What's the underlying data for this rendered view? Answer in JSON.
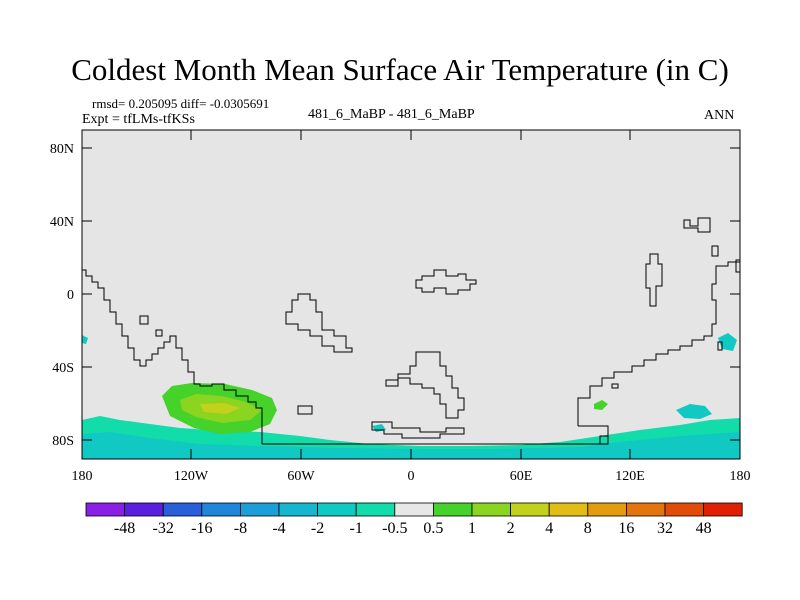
{
  "title": "Coldest Month Mean Surface Air Temperature (in C)",
  "stats_line": "rmsd= 0.205095 diff= -0.0305691",
  "experiment_line": "Expt = tfLMs-tfKSs",
  "case_line": "481_6_MaBP - 481_6_MaBP",
  "season": "ANN",
  "map": {
    "background_color": "#e5e5e5",
    "lat_ticks": [
      "80N",
      "40N",
      "0",
      "40S",
      "80S"
    ],
    "lon_ticks": [
      "180",
      "120W",
      "60W",
      "0",
      "60E",
      "120E",
      "180"
    ]
  },
  "colorbar": {
    "colors": [
      "#8a1fe6",
      "#5a20df",
      "#2a5fdb",
      "#1f86dc",
      "#1a9fd9",
      "#16b6cf",
      "#10c9c3",
      "#12dcaa",
      "#e7e7e7",
      "#45d22a",
      "#8bd41f",
      "#c2d11c",
      "#e1bd15",
      "#e39b10",
      "#e3750c",
      "#e14d08",
      "#e01f04"
    ],
    "labels": [
      "-48",
      "-32",
      "-16",
      "-8",
      "-4",
      "-2",
      "-1",
      "-0.5",
      "0.5",
      "1",
      "2",
      "4",
      "8",
      "16",
      "32",
      "48"
    ]
  }
}
